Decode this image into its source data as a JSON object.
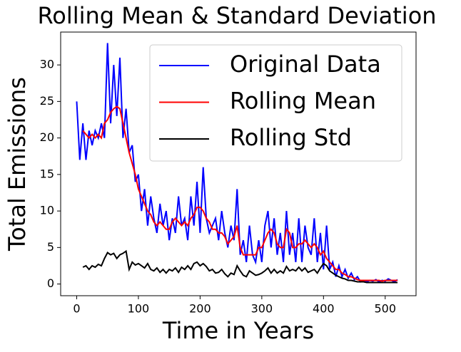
{
  "chart_data": {
    "type": "line",
    "title": "Rolling Mean & Standard Deviation",
    "xlabel": "Time in Years",
    "ylabel": "Total Emissions",
    "x": [
      0,
      5,
      10,
      15,
      20,
      25,
      30,
      35,
      40,
      45,
      50,
      55,
      60,
      65,
      70,
      75,
      80,
      85,
      90,
      95,
      100,
      105,
      110,
      115,
      120,
      125,
      130,
      135,
      140,
      145,
      150,
      155,
      160,
      165,
      170,
      175,
      180,
      185,
      190,
      195,
      200,
      205,
      210,
      215,
      220,
      225,
      230,
      235,
      240,
      245,
      250,
      255,
      260,
      265,
      270,
      275,
      280,
      285,
      290,
      295,
      300,
      305,
      310,
      315,
      320,
      325,
      330,
      335,
      340,
      345,
      350,
      355,
      360,
      365,
      370,
      375,
      380,
      385,
      390,
      395,
      400,
      405,
      410,
      415,
      420,
      425,
      430,
      435,
      440,
      445,
      450,
      455,
      460,
      465,
      470,
      475,
      480,
      485,
      490,
      495,
      500,
      505,
      510,
      515,
      520
    ],
    "series": [
      {
        "name": "Original Data",
        "color": "#0000ff",
        "values": [
          25,
          17,
          22,
          17,
          21,
          19,
          21,
          20,
          22,
          20,
          33,
          22,
          30,
          23,
          31,
          20,
          24,
          18,
          19,
          14,
          15,
          10,
          13,
          8,
          12,
          9,
          7,
          11,
          8,
          10,
          6,
          9,
          7,
          12,
          8,
          9,
          6,
          12,
          8,
          14,
          7,
          16,
          9,
          7,
          8,
          9,
          6,
          10,
          7,
          5,
          8,
          6,
          13,
          4,
          6,
          3,
          8,
          4,
          3,
          6,
          3,
          8,
          10,
          5,
          9,
          4,
          7,
          3,
          10,
          4,
          7,
          3,
          9,
          3,
          8,
          5,
          4,
          9,
          3,
          7,
          2,
          8,
          2,
          3,
          1,
          2.5,
          1,
          2,
          0.8,
          1.5,
          0.6,
          1,
          0.3,
          0.5,
          0.3,
          0.5,
          0.4,
          0.6,
          0.3,
          0.5,
          0.4,
          0.7,
          0.5,
          0.3,
          0.6
        ]
      },
      {
        "name": "Rolling Mean",
        "color": "#ff0000",
        "values": [
          null,
          null,
          21,
          20.5,
          20,
          20.5,
          20,
          20.5,
          20,
          22,
          22.5,
          23.5,
          24,
          24.3,
          24,
          22,
          20,
          18,
          16.5,
          15,
          13,
          12,
          11,
          10,
          9.5,
          8.5,
          8,
          8.5,
          8,
          7.5,
          7.5,
          8.5,
          9,
          8.5,
          8,
          8.5,
          8,
          9,
          9.5,
          10.5,
          10.5,
          10,
          9,
          8.5,
          7.5,
          7.5,
          7,
          7,
          6.5,
          5.5,
          6,
          6.5,
          8,
          5,
          4,
          4,
          4,
          4,
          4,
          5,
          5,
          6,
          7,
          7.5,
          7,
          5.5,
          5,
          5,
          7.5,
          7,
          5,
          5,
          5.5,
          5.5,
          6,
          5.5,
          5,
          5.5,
          5,
          4,
          4.5,
          3.5,
          3,
          2.5,
          2,
          2,
          1.5,
          1.3,
          1,
          1,
          0.8,
          0.6,
          0.5,
          0.5,
          0.5,
          0.5,
          0.5,
          0.5,
          0.5,
          0.4,
          0.5,
          0.5,
          0.5,
          0.5,
          0.5
        ]
      },
      {
        "name": "Rolling Std",
        "color": "#000000",
        "values": [
          null,
          null,
          2.3,
          2.5,
          2,
          2.5,
          2.3,
          2.7,
          2.5,
          3.5,
          4.3,
          4,
          4.2,
          3.5,
          4,
          4.2,
          4.5,
          2,
          3,
          2.6,
          2.8,
          2.5,
          2.2,
          2.8,
          2,
          1.8,
          2.2,
          1.6,
          2,
          1.5,
          2,
          1.8,
          2.2,
          1.6,
          2.3,
          2,
          2.5,
          2,
          2.8,
          3,
          2.5,
          2.8,
          2.4,
          1.8,
          2,
          1.5,
          1.6,
          2,
          1.4,
          1,
          1.5,
          1.3,
          2.5,
          1.8,
          1.2,
          1,
          1.8,
          1.5,
          1.2,
          1.3,
          1.5,
          1.8,
          2.2,
          1.5,
          2,
          1.5,
          1.8,
          1.5,
          2.4,
          1.8,
          2,
          1.8,
          2.3,
          1.8,
          2.2,
          1.6,
          1.8,
          2,
          1.5,
          2.2,
          2.8,
          2.5,
          1.8,
          1.5,
          1.2,
          1,
          0.8,
          0.7,
          0.5,
          0.5,
          0.4,
          0.3,
          0.3,
          0.3,
          0.2,
          0.2,
          0.2,
          0.2,
          0.2,
          0.2,
          0.2,
          0.2,
          0.2,
          0.2,
          0.2
        ]
      }
    ],
    "xlim": [
      -26,
      550
    ],
    "xticks": [
      0,
      100,
      200,
      300,
      400,
      500
    ],
    "ylim": [
      -1.6,
      34.5
    ],
    "yticks": [
      0,
      5,
      10,
      15,
      20,
      25,
      30
    ],
    "legend": "upper right",
    "grid": false
  }
}
